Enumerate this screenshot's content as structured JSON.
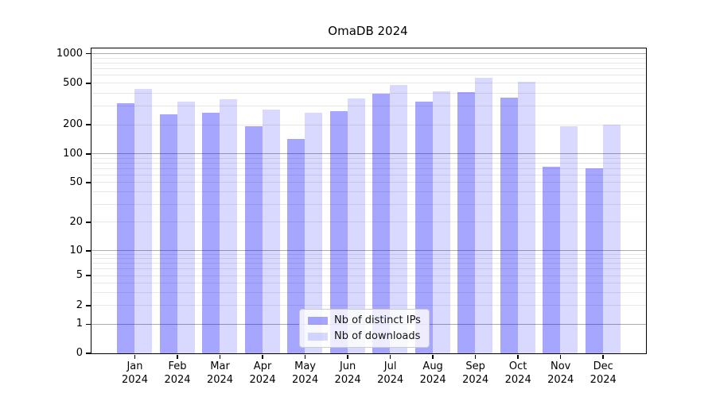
{
  "chart_data": {
    "type": "bar",
    "title": "OmaDB 2024",
    "categories": [
      "Jan 2024",
      "Feb 2024",
      "Mar 2024",
      "Apr 2024",
      "May 2024",
      "Jun 2024",
      "Jul 2024",
      "Aug 2024",
      "Sep 2024",
      "Oct 2024",
      "Nov 2024",
      "Dec 2024"
    ],
    "x_tick_line1": [
      "Jan",
      "Feb",
      "Mar",
      "Apr",
      "May",
      "Jun",
      "Jul",
      "Aug",
      "Sep",
      "Oct",
      "Nov",
      "Dec"
    ],
    "x_tick_line2": "2024",
    "series": [
      {
        "name": "Nb of distinct IPs",
        "color": "rgba(0,0,255,0.35)",
        "values": [
          320,
          250,
          260,
          190,
          140,
          265,
          390,
          330,
          410,
          360,
          73,
          70
        ]
      },
      {
        "name": "Nb of downloads",
        "color": "rgba(0,0,255,0.15)",
        "values": [
          440,
          330,
          350,
          275,
          260,
          355,
          480,
          415,
          560,
          510,
          190,
          200
        ]
      }
    ],
    "y_axis": {
      "scale": "symlog",
      "ticks": [
        0,
        1,
        2,
        5,
        10,
        20,
        50,
        100,
        200,
        500,
        1000
      ],
      "lim": [
        0,
        1000
      ],
      "grid": true,
      "grid_major": [
        1,
        10,
        100,
        1000
      ],
      "grid_minor": [
        2,
        3,
        4,
        5,
        6,
        7,
        8,
        9,
        20,
        30,
        40,
        50,
        60,
        70,
        80,
        90,
        200,
        300,
        400,
        500,
        600,
        700,
        800,
        900
      ]
    },
    "legend": {
      "position": "lower center"
    },
    "colors": {
      "bar_distinct_ips": "rgba(0,0,255,0.35)",
      "bar_downloads": "rgba(0,0,255,0.15)",
      "grid_major": "#ababab",
      "grid_minor": "#e8e8e8",
      "spine": "#000000",
      "text": "#000000"
    }
  }
}
